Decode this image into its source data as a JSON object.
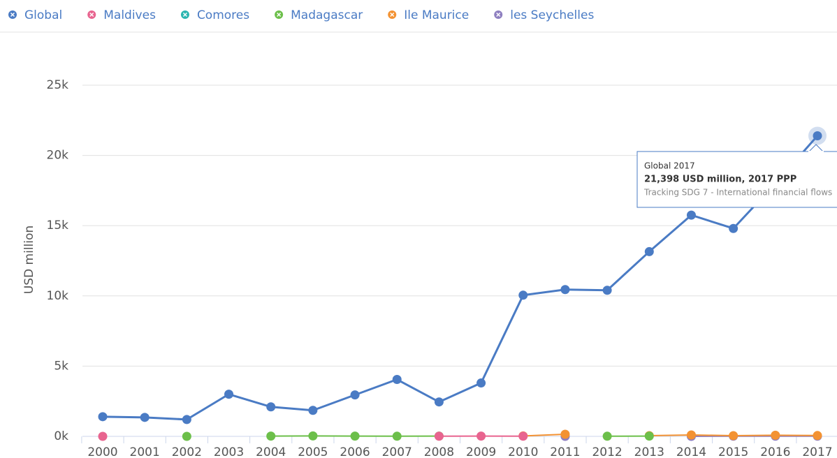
{
  "chart_data": {
    "type": "line",
    "y_axis_label": "USD million",
    "categories": [
      "2000",
      "2001",
      "2002",
      "2003",
      "2004",
      "2005",
      "2006",
      "2007",
      "2008",
      "2009",
      "2010",
      "2011",
      "2012",
      "2013",
      "2014",
      "2015",
      "2016",
      "2017"
    ],
    "series": [
      {
        "name": "Global",
        "color": "#4a7bc4",
        "values": [
          1400,
          1350,
          1200,
          3000,
          2100,
          1850,
          2950,
          4050,
          2450,
          3800,
          10050,
          10450,
          10400,
          13150,
          15750,
          14800,
          18000,
          21398
        ]
      },
      {
        "name": "Maldives",
        "color": "#e8648f",
        "values": [
          0,
          null,
          null,
          null,
          null,
          null,
          null,
          null,
          10,
          20,
          10,
          null,
          null,
          null,
          null,
          null,
          null,
          null
        ]
      },
      {
        "name": "Comores",
        "color": "#2bb5b0",
        "values": [
          null,
          null,
          null,
          null,
          null,
          null,
          null,
          null,
          null,
          null,
          null,
          null,
          null,
          null,
          null,
          null,
          null,
          null
        ]
      },
      {
        "name": "Madagascar",
        "color": "#6cbf4a",
        "values": [
          null,
          null,
          0,
          null,
          20,
          30,
          20,
          10,
          20,
          null,
          null,
          null,
          10,
          20,
          null,
          null,
          null,
          null
        ]
      },
      {
        "name": "Ile Maurice",
        "color": "#f39232",
        "values": [
          null,
          null,
          null,
          null,
          null,
          null,
          null,
          null,
          null,
          null,
          30,
          150,
          null,
          50,
          100,
          50,
          80,
          60
        ]
      },
      {
        "name": "les Seychelles",
        "color": "#8e7fc0",
        "values": [
          null,
          null,
          null,
          null,
          null,
          null,
          null,
          null,
          null,
          null,
          null,
          0,
          null,
          null,
          0,
          10,
          10,
          10
        ]
      }
    ],
    "ylim": [
      0,
      25000
    ],
    "yticks": [
      {
        "value": 0,
        "label": "0k"
      },
      {
        "value": 5000,
        "label": "5k"
      },
      {
        "value": 10000,
        "label": "10k"
      },
      {
        "value": 15000,
        "label": "15k"
      },
      {
        "value": 20000,
        "label": "20k"
      },
      {
        "value": 25000,
        "label": "25k"
      }
    ],
    "grid": true,
    "legend": "top",
    "tooltip": {
      "title": "Global 2017",
      "value": "21,398 USD million, 2017 PPP",
      "source": "Tracking SDG 7 - International financial flows"
    }
  }
}
